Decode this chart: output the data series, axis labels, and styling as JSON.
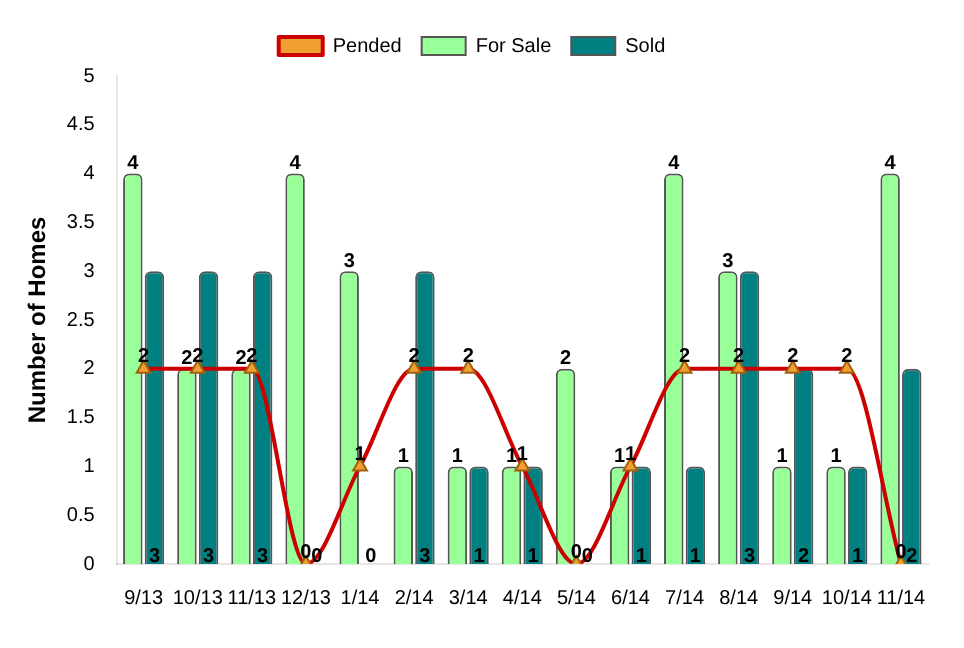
{
  "chart_data": {
    "type": "bar",
    "ylabel": "Number of Homes",
    "categories": [
      "9/13",
      "10/13",
      "11/13",
      "12/13",
      "1/14",
      "2/14",
      "3/14",
      "4/14",
      "5/14",
      "6/14",
      "7/14",
      "8/14",
      "9/14",
      "10/14",
      "11/14"
    ],
    "series": [
      {
        "name": "For Sale",
        "color": "#99ff99",
        "values": [
          4,
          2,
          2,
          4,
          3,
          1,
          1,
          1,
          2,
          1,
          4,
          3,
          1,
          1,
          4
        ]
      },
      {
        "name": "Sold",
        "color": "#008080",
        "values": [
          3,
          3,
          3,
          0,
          0,
          3,
          1,
          1,
          0,
          1,
          1,
          3,
          2,
          1,
          2
        ]
      },
      {
        "name": "Pended",
        "type": "line",
        "color": "#cc0000",
        "marker": "triangle",
        "values": [
          2,
          2,
          2,
          0,
          1,
          2,
          2,
          1,
          0,
          1,
          2,
          2,
          2,
          2,
          0
        ]
      }
    ],
    "ylim": [
      0,
      5
    ],
    "yticks": [
      0,
      0.5,
      1,
      1.5,
      2,
      2.5,
      3,
      3.5,
      4,
      4.5,
      5
    ],
    "grid": false,
    "legend": "top",
    "data_labels": true
  }
}
